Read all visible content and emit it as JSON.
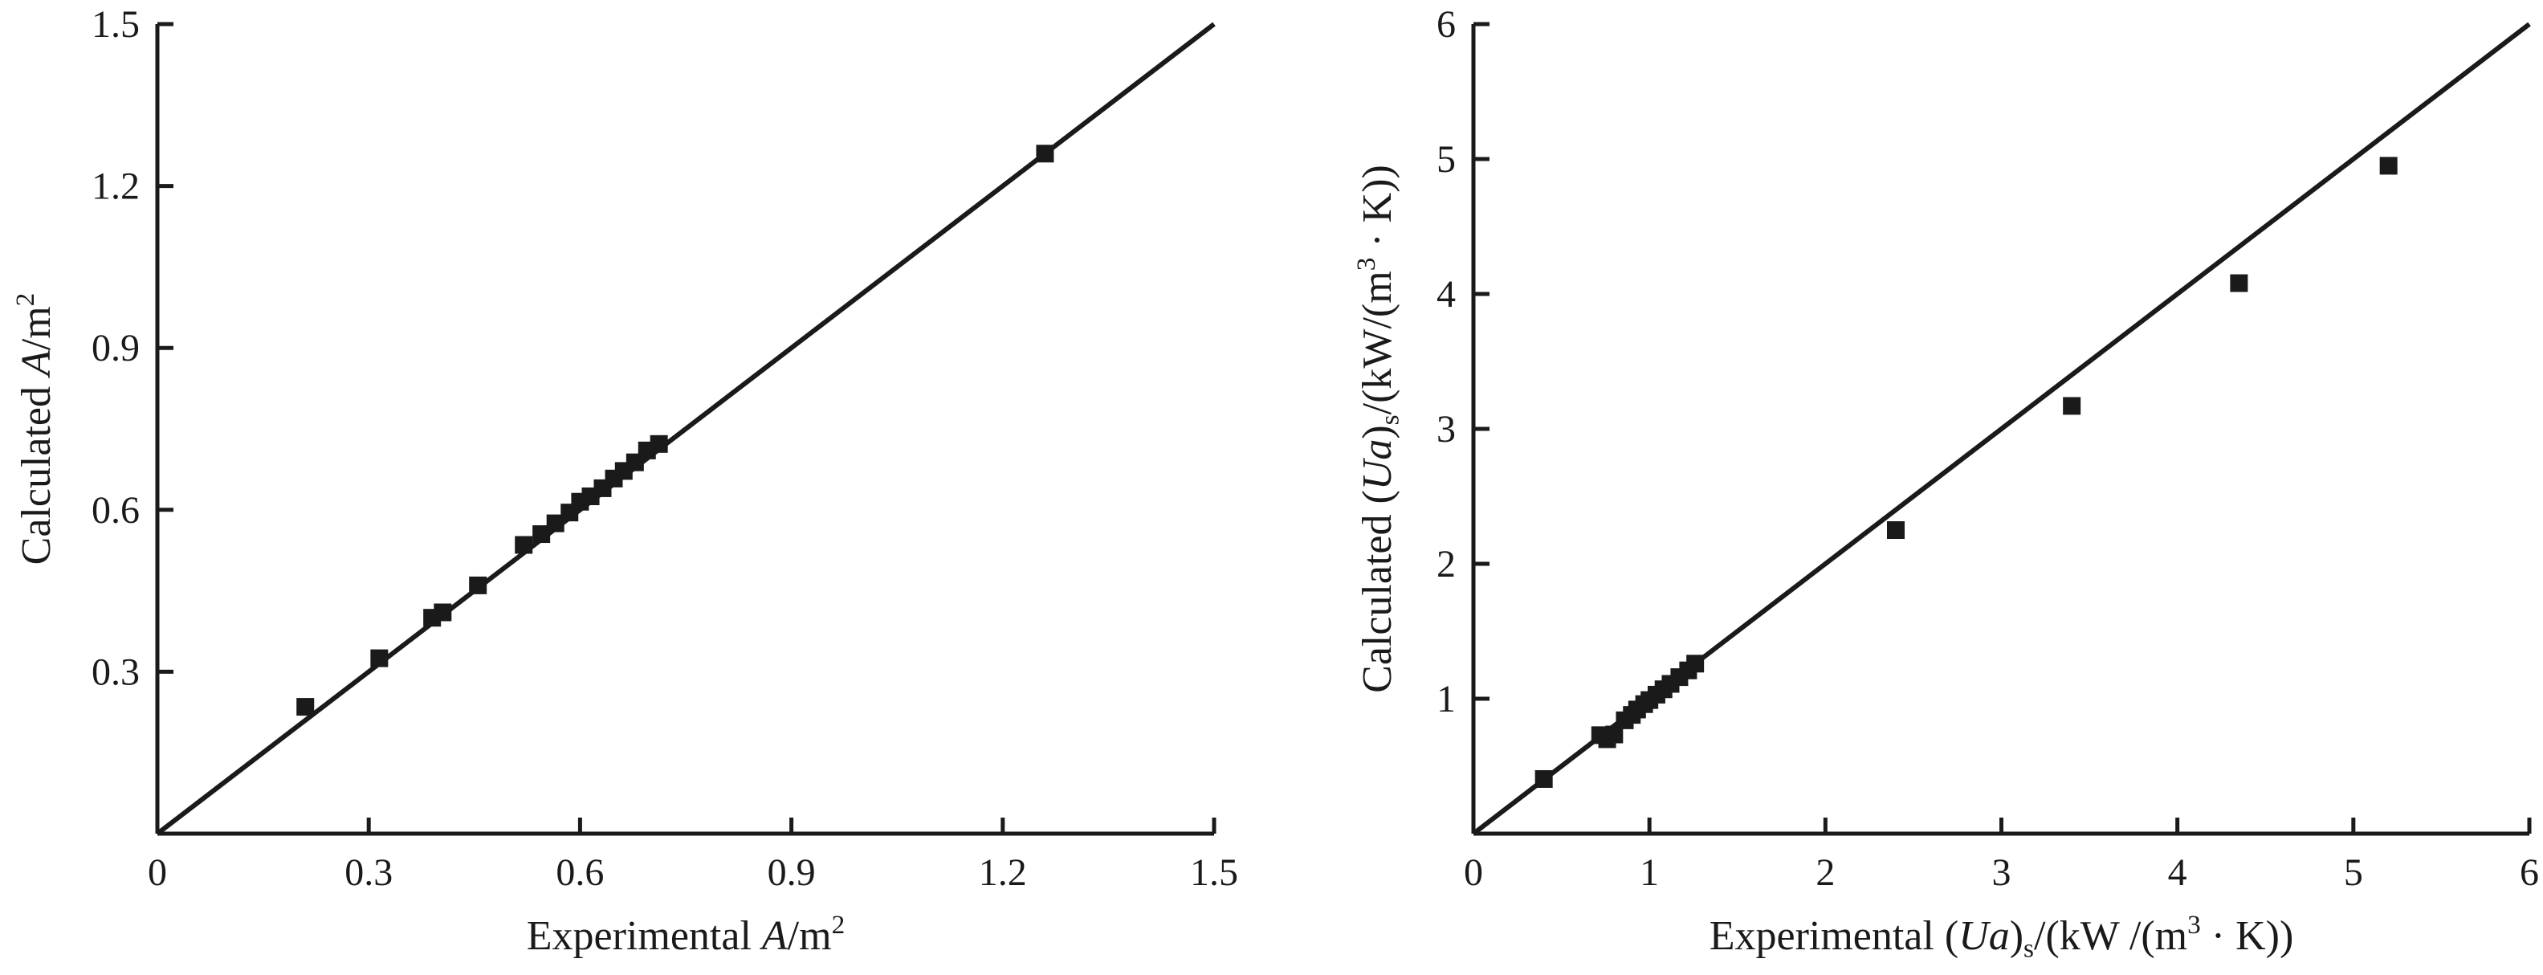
{
  "page": {
    "background": "#ffffff",
    "ink_color": "#1a1a1a"
  },
  "chart_data": [
    {
      "type": "scatter",
      "title": "",
      "xlabel": "Experimental A/m²",
      "ylabel": "Calculated A/m²",
      "xlabel_parts": [
        {
          "t": "Experimental ",
          "s": "n"
        },
        {
          "t": "A",
          "s": "i"
        },
        {
          "t": "/m",
          "s": "n"
        },
        {
          "t": "2",
          "s": "sup"
        }
      ],
      "ylabel_parts": [
        {
          "t": "Calculated ",
          "s": "n"
        },
        {
          "t": "A",
          "s": "i"
        },
        {
          "t": "/m",
          "s": "n"
        },
        {
          "t": "2",
          "s": "sup"
        }
      ],
      "xlim": [
        0,
        1.5
      ],
      "ylim": [
        0,
        1.5
      ],
      "xtick_values": [
        0,
        0.3,
        0.6,
        0.9,
        1.2,
        1.5
      ],
      "xtick_labels": [
        "0",
        "0.3",
        "0.6",
        "0.9",
        "1.2",
        "1.5"
      ],
      "ytick_values": [
        0.3,
        0.6,
        0.9,
        1.2,
        1.5
      ],
      "ytick_labels": [
        "0.3",
        "0.6",
        "0.9",
        "1.2",
        "1.5"
      ],
      "grid": false,
      "legend": null,
      "marker": "square",
      "color": "#1a1a1a",
      "parity_line": {
        "x": [
          0,
          1.5
        ],
        "y": [
          0,
          1.5
        ]
      },
      "points": [
        [
          0.21,
          0.235
        ],
        [
          0.315,
          0.325
        ],
        [
          0.39,
          0.4
        ],
        [
          0.405,
          0.41
        ],
        [
          0.455,
          0.46
        ],
        [
          0.52,
          0.535
        ],
        [
          0.545,
          0.555
        ],
        [
          0.565,
          0.575
        ],
        [
          0.585,
          0.595
        ],
        [
          0.6,
          0.615
        ],
        [
          0.615,
          0.625
        ],
        [
          0.632,
          0.64
        ],
        [
          0.648,
          0.658
        ],
        [
          0.662,
          0.672
        ],
        [
          0.678,
          0.688
        ],
        [
          0.695,
          0.71
        ],
        [
          0.712,
          0.722
        ],
        [
          1.26,
          1.26
        ]
      ]
    },
    {
      "type": "scatter",
      "title": "",
      "xlabel": "Experimental (Ua)ₛ/(kW /(m³ · K))",
      "ylabel": "Calculated (Ua)ₛ/(kW/(m³ · K))",
      "xlabel_parts": [
        {
          "t": "Experimental (",
          "s": "n"
        },
        {
          "t": "Ua",
          "s": "i"
        },
        {
          "t": ")",
          "s": "n"
        },
        {
          "t": "s",
          "s": "sub"
        },
        {
          "t": "/(kW /(m",
          "s": "n"
        },
        {
          "t": "3",
          "s": "sup"
        },
        {
          "t": " · K))",
          "s": "n"
        }
      ],
      "ylabel_parts": [
        {
          "t": "Calculated (",
          "s": "n"
        },
        {
          "t": "Ua",
          "s": "i"
        },
        {
          "t": ")",
          "s": "n"
        },
        {
          "t": "s",
          "s": "sub"
        },
        {
          "t": "/(kW/(m",
          "s": "n"
        },
        {
          "t": "3",
          "s": "sup"
        },
        {
          "t": " · K))",
          "s": "n"
        }
      ],
      "xlim": [
        0,
        6
      ],
      "ylim": [
        0,
        6
      ],
      "xtick_values": [
        0,
        1,
        2,
        3,
        4,
        5,
        6
      ],
      "xtick_labels": [
        "0",
        "1",
        "2",
        "3",
        "4",
        "5",
        "6"
      ],
      "ytick_values": [
        1,
        2,
        3,
        4,
        5,
        6
      ],
      "ytick_labels": [
        "1",
        "2",
        "3",
        "4",
        "5",
        "6"
      ],
      "grid": false,
      "legend": null,
      "marker": "square",
      "color": "#1a1a1a",
      "parity_line": {
        "x": [
          0,
          6
        ],
        "y": [
          0,
          6
        ]
      },
      "points": [
        [
          0.4,
          0.405
        ],
        [
          0.72,
          0.73
        ],
        [
          0.76,
          0.7
        ],
        [
          0.8,
          0.735
        ],
        [
          0.86,
          0.84
        ],
        [
          0.9,
          0.88
        ],
        [
          0.93,
          0.92
        ],
        [
          0.97,
          0.96
        ],
        [
          1.0,
          0.99
        ],
        [
          1.04,
          1.03
        ],
        [
          1.08,
          1.07
        ],
        [
          1.12,
          1.11
        ],
        [
          1.17,
          1.16
        ],
        [
          1.22,
          1.21
        ],
        [
          1.26,
          1.26
        ],
        [
          2.4,
          2.25
        ],
        [
          3.4,
          3.17
        ],
        [
          4.35,
          4.08
        ],
        [
          5.2,
          4.95
        ]
      ]
    }
  ]
}
